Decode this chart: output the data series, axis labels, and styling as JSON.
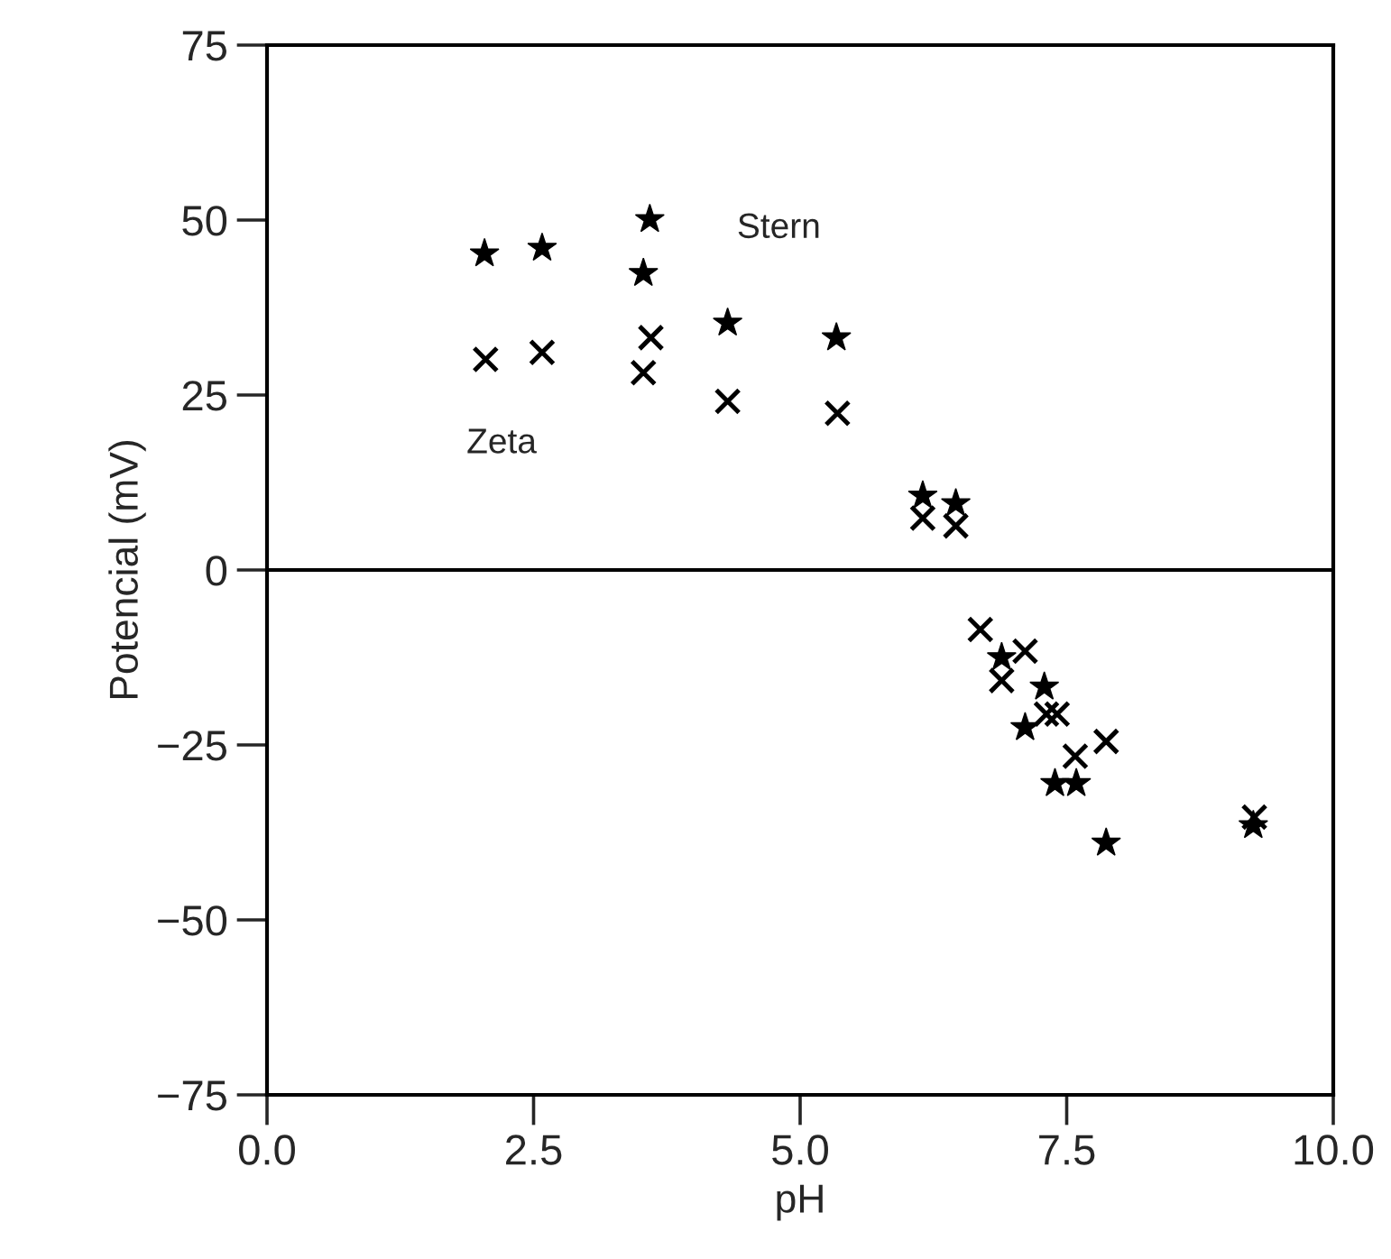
{
  "chart_data": {
    "type": "scatter",
    "xlabel": "pH",
    "ylabel": "Potencial (mV)",
    "xlim": [
      0,
      10
    ],
    "ylim": [
      -75,
      75
    ],
    "xticks": [
      {
        "value": 0,
        "label": "0.0"
      },
      {
        "value": 2.5,
        "label": "2.5"
      },
      {
        "value": 5,
        "label": "5.0"
      },
      {
        "value": 7.5,
        "label": "7.5"
      },
      {
        "value": 10,
        "label": "10.0"
      }
    ],
    "yticks": [
      {
        "value": -75,
        "label": "−75"
      },
      {
        "value": -50,
        "label": "−50"
      },
      {
        "value": -25,
        "label": "−25"
      },
      0,
      25,
      50,
      75
    ],
    "grid": false,
    "legend": false,
    "ref_lines": [
      {
        "axis": "y",
        "value": 0,
        "color": "#000000",
        "line_style": "solid"
      }
    ],
    "series": [
      {
        "name": "Stern",
        "color": "#000000",
        "marker": "star",
        "x": [
          2.04,
          2.58,
          3.59,
          3.53,
          4.32,
          5.34,
          6.15,
          6.46,
          6.89,
          7.29,
          7.11,
          7.39,
          7.59,
          7.87,
          9.25
        ],
        "values": [
          45.2,
          46.0,
          50.1,
          42.4,
          35.3,
          33.2,
          10.6,
          9.5,
          -12.5,
          -16.7,
          -22.5,
          -30.5,
          -30.5,
          -39.0,
          -36.5
        ]
      },
      {
        "name": "Zeta",
        "color": "#000000",
        "marker": "cross",
        "x": [
          2.05,
          2.58,
          3.6,
          3.53,
          4.32,
          5.35,
          6.15,
          6.46,
          6.69,
          7.11,
          6.89,
          7.31,
          7.41,
          7.87,
          7.58,
          9.26
        ],
        "values": [
          30.1,
          31.1,
          33.2,
          28.2,
          24.1,
          22.4,
          7.4,
          6.3,
          -8.5,
          -11.6,
          -15.8,
          -20.6,
          -20.6,
          -24.5,
          -26.6,
          -35.3
        ]
      }
    ]
  }
}
